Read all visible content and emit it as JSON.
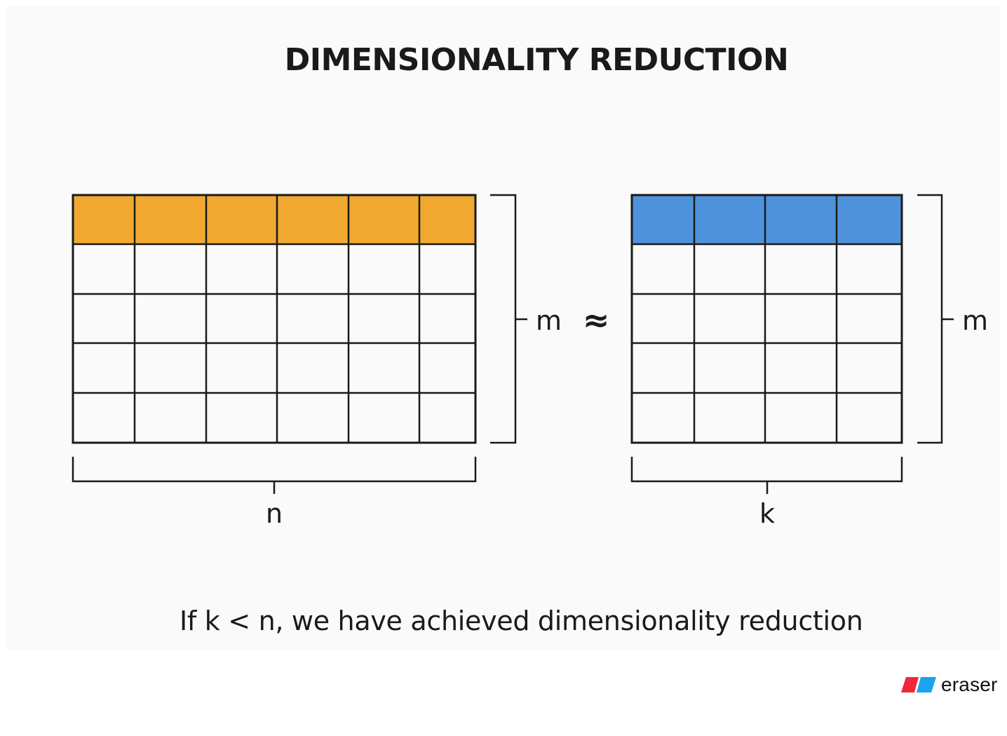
{
  "title": "DIMENSIONALITY REDUCTION",
  "caption": "If k < n, we have achieved dimensionality reduction",
  "approx_symbol": "≈",
  "left_matrix": {
    "rows": 5,
    "cols": 6,
    "highlight_color": "#f0a830",
    "width_label": "n",
    "height_label": "m"
  },
  "right_matrix": {
    "rows": 5,
    "cols": 4,
    "highlight_color": "#4f92dc",
    "width_label": "k",
    "height_label": "m"
  },
  "brand": {
    "name": "eraser",
    "icon": "eraser-logo-icon",
    "colors": [
      "#f0283c",
      "#1aa3f0"
    ]
  }
}
